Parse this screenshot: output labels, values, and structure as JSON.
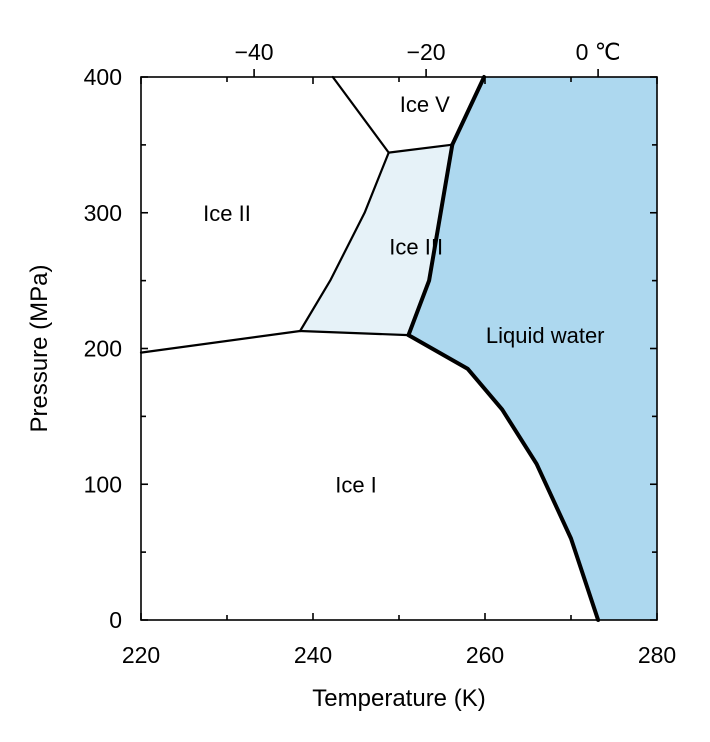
{
  "chart_data": {
    "type": "area",
    "title": "",
    "xlabel": "Temperature (K)",
    "ylabel": "Pressure (MPa)",
    "xlim": [
      220,
      280
    ],
    "ylim": [
      0,
      400
    ],
    "x_ticks": [
      220,
      240,
      260,
      280
    ],
    "y_ticks": [
      0,
      100,
      200,
      300,
      400
    ],
    "secondary_x_axis": {
      "position": "top",
      "ticks": [
        {
          "kelvin": 233.15,
          "label": "−40"
        },
        {
          "kelvin": 253.15,
          "label": "−20"
        },
        {
          "kelvin": 273.15,
          "label": "0 ℃"
        }
      ]
    },
    "grid": false,
    "regions": [
      {
        "name": "Ice I",
        "label_at": {
          "T": 245,
          "P": 100
        }
      },
      {
        "name": "Ice II",
        "label_at": {
          "T": 230,
          "P": 300
        }
      },
      {
        "name": "Ice III",
        "label_at": {
          "T": 252,
          "P": 275
        },
        "fill": "#e6f2f8"
      },
      {
        "name": "Ice V",
        "label_at": {
          "T": 253,
          "P": 380
        }
      },
      {
        "name": "Liquid water",
        "label_at": {
          "T": 267,
          "P": 210
        },
        "fill": "#add8ef"
      }
    ],
    "boundaries": [
      {
        "name": "ice I / liquid",
        "bold": true,
        "points": [
          [
            273.15,
            0
          ],
          [
            270,
            60
          ],
          [
            266,
            115
          ],
          [
            262,
            155
          ],
          [
            258,
            185
          ],
          [
            251.1,
            209.9
          ]
        ]
      },
      {
        "name": "ice III / liquid",
        "bold": true,
        "points": [
          [
            251.1,
            209.9
          ],
          [
            253.5,
            250
          ],
          [
            256.2,
            350.1
          ]
        ]
      },
      {
        "name": "ice V / liquid",
        "bold": true,
        "points": [
          [
            256.2,
            350.1
          ],
          [
            259.9,
            400
          ]
        ]
      },
      {
        "name": "ice I / ice II",
        "bold": false,
        "points": [
          [
            220,
            197
          ],
          [
            238.5,
            212.9
          ]
        ]
      },
      {
        "name": "ice I / ice III",
        "bold": false,
        "points": [
          [
            238.5,
            212.9
          ],
          [
            251.1,
            209.9
          ]
        ]
      },
      {
        "name": "ice II / ice III",
        "bold": false,
        "points": [
          [
            238.5,
            212.9
          ],
          [
            242,
            250
          ],
          [
            246,
            300
          ],
          [
            248.8,
            344.3
          ]
        ]
      },
      {
        "name": "ice III / ice V",
        "bold": false,
        "points": [
          [
            248.8,
            344.3
          ],
          [
            256.2,
            350.1
          ]
        ]
      },
      {
        "name": "ice II / ice V",
        "bold": false,
        "points": [
          [
            248.8,
            344.3
          ],
          [
            242.3,
            400
          ]
        ]
      }
    ]
  }
}
